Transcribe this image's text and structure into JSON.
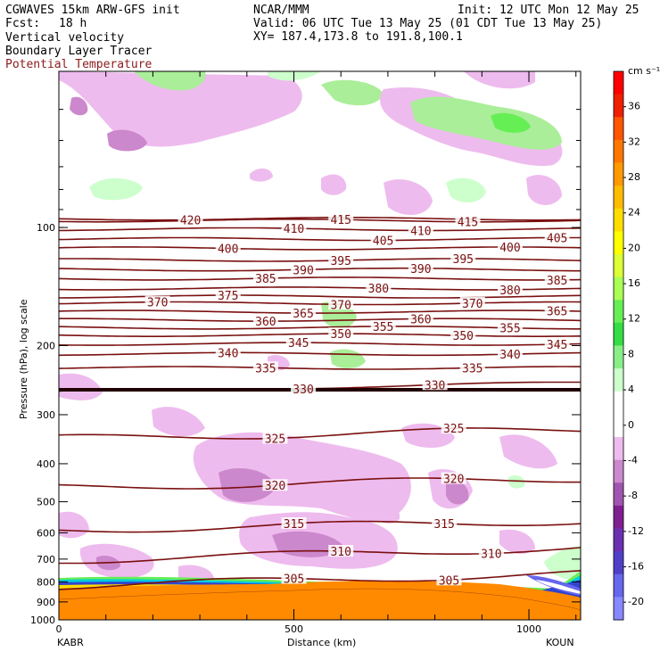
{
  "header": {
    "model": "CGWAVES 15km ARW-GFS init",
    "fcst_label": "Fcst:",
    "fcst_value": "18 h",
    "org": "NCAR/MMM",
    "init": "Init: 12 UTC Mon 12 May 25",
    "valid": "Valid: 06 UTC Tue 13 May 25 (01 CDT Tue 13 May 25)",
    "xy": "XY= 187.4,173.8 to 191.8,100.1",
    "field1": "Vertical velocity",
    "field2": "Boundary Layer Tracer",
    "field3": "Potential Temperature",
    "field3_color": "#8b1a1a"
  },
  "chart_data": {
    "type": "cross-section",
    "xlabel": "Distance (km)",
    "ylabel": "Pressure (hPa), log scale",
    "x_ticks": [
      "0",
      "500",
      "1000"
    ],
    "x_tick_values": [
      0,
      500,
      1000
    ],
    "xlim": [
      0,
      1110
    ],
    "y_ticks": [
      "100",
      "200",
      "300",
      "400",
      "500",
      "600",
      "700",
      "800",
      "900",
      "1000"
    ],
    "y_tick_values": [
      100,
      200,
      300,
      400,
      500,
      600,
      700,
      800,
      900,
      1000
    ],
    "ylim": [
      1000,
      40
    ],
    "x_endpoints": [
      "KABR",
      "KOUN"
    ],
    "colorbar": {
      "unit": "cm s⁻¹",
      "labels": [
        "36",
        "32",
        "28",
        "24",
        "20",
        "16",
        "12",
        "8",
        "4",
        "0",
        "-4",
        "-8",
        "-12",
        "-16",
        "-20"
      ],
      "label_values": [
        36,
        32,
        28,
        24,
        20,
        16,
        12,
        8,
        4,
        0,
        -4,
        -8,
        -12,
        -16,
        -20
      ],
      "colors": [
        "#ff0000",
        "#ee2000",
        "#ff5500",
        "#ff7700",
        "#ff9900",
        "#ffbb00",
        "#ffdd00",
        "#ffff00",
        "#ddff33",
        "#aaff55",
        "#66ee55",
        "#33dd44",
        "#88ee88",
        "#ccffcc",
        "#ffffff",
        "#ffffff",
        "#eebbee",
        "#cc88cc",
        "#a055b0",
        "#802090",
        "#6a30b0",
        "#5040c8",
        "#6666ee",
        "#8888ff"
      ]
    },
    "isentropes": [
      {
        "theta": 420,
        "p": 95,
        "labels": [
          {
            "x": 280
          }
        ]
      },
      {
        "theta": 415,
        "p": 96,
        "labels": [
          {
            "x": 600
          },
          {
            "x": 870
          }
        ]
      },
      {
        "theta": 410,
        "p": 101,
        "labels": [
          {
            "x": 500
          },
          {
            "x": 770
          }
        ]
      },
      {
        "theta": 405,
        "p": 107,
        "labels": [
          {
            "x": 690
          },
          {
            "x": 1060
          }
        ]
      },
      {
        "theta": 400,
        "p": 113,
        "labels": [
          {
            "x": 360
          },
          {
            "x": 960
          }
        ]
      },
      {
        "theta": 395,
        "p": 121,
        "labels": [
          {
            "x": 600
          },
          {
            "x": 860
          }
        ]
      },
      {
        "theta": 390,
        "p": 128,
        "labels": [
          {
            "x": 520
          },
          {
            "x": 770
          }
        ]
      },
      {
        "theta": 385,
        "p": 135,
        "labels": [
          {
            "x": 440
          },
          {
            "x": 1060
          }
        ]
      },
      {
        "theta": 380,
        "p": 143,
        "labels": [
          {
            "x": 680
          },
          {
            "x": 960
          }
        ]
      },
      {
        "theta": 375,
        "p": 150,
        "labels": [
          {
            "x": 360
          }
        ]
      },
      {
        "theta": 370,
        "p": 156,
        "labels": [
          {
            "x": 210
          },
          {
            "x": 600
          },
          {
            "x": 880
          }
        ]
      },
      {
        "theta": 365,
        "p": 164,
        "labels": [
          {
            "x": 520
          },
          {
            "x": 1060
          }
        ]
      },
      {
        "theta": 360,
        "p": 172,
        "labels": [
          {
            "x": 440
          },
          {
            "x": 770
          }
        ]
      },
      {
        "theta": 355,
        "p": 180,
        "labels": [
          {
            "x": 690
          },
          {
            "x": 960
          }
        ]
      },
      {
        "theta": 350,
        "p": 188,
        "labels": [
          {
            "x": 600
          },
          {
            "x": 860
          }
        ]
      },
      {
        "theta": 345,
        "p": 198,
        "labels": [
          {
            "x": 510
          },
          {
            "x": 1060
          }
        ]
      },
      {
        "theta": 340,
        "p": 210,
        "labels": [
          {
            "x": 360
          },
          {
            "x": 960
          }
        ]
      },
      {
        "theta": 335,
        "p": 228,
        "labels": [
          {
            "x": 440
          },
          {
            "x": 880
          }
        ]
      },
      {
        "theta": 330,
        "p": 262,
        "labels": [
          {
            "x": 520
          },
          {
            "x": 800
          }
        ]
      },
      {
        "theta": 325,
        "p": 345,
        "labels": [
          {
            "x": 460
          },
          {
            "x": 840
          }
        ]
      },
      {
        "theta": 320,
        "p": 460,
        "labels": [
          {
            "x": 460
          },
          {
            "x": 840
          }
        ]
      },
      {
        "theta": 315,
        "p": 590,
        "labels": [
          {
            "x": 500
          },
          {
            "x": 820
          }
        ]
      },
      {
        "theta": 310,
        "p": 705,
        "labels": [
          {
            "x": 600
          },
          {
            "x": 920
          }
        ]
      },
      {
        "theta": 305,
        "p": 820,
        "labels": [
          {
            "x": 500
          },
          {
            "x": 830
          }
        ]
      }
    ]
  }
}
